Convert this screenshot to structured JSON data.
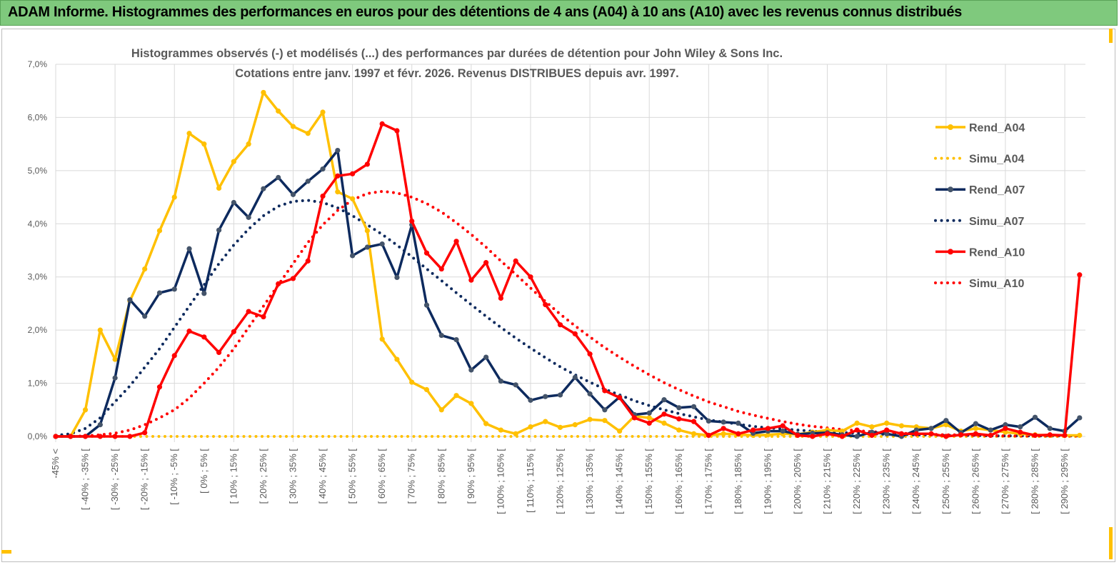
{
  "header": {
    "title": "ADAM Informe. Histogrammes des performances en euros pour des détentions de 4 ans (A04) à 10 ans (A10) avec les revenus connus distribués"
  },
  "chart_data": {
    "type": "line",
    "title": "Histogrammes observés (-) et modélisés (...) des performances par durées de détention pour John Wiley & Sons Inc.",
    "subtitle": "Cotations entre janv. 1997 et févr. 2026. Revenus DISTRIBUES depuis avr. 1997.",
    "ylim": [
      0,
      7
    ],
    "y_ticks": [
      "0,0%",
      "1,0%",
      "2,0%",
      "3,0%",
      "4,0%",
      "5,0%",
      "6,0%",
      "7,0%"
    ],
    "num_categories": 70,
    "x_labels_every": 2,
    "x_labels": [
      "-45% <",
      "[ -40% ; -35% [",
      "[ -30% ; -25% [",
      "[ -20% ; -15% [",
      "[ -10% ; -5% [",
      "[ 0% ; 5% [",
      "[ 10% ; 15% [",
      "[ 20% ; 25% [",
      "[ 30% ; 35% [",
      "[ 40% ; 45% [",
      "[ 50% ; 55% [",
      "[ 60% ; 65% [",
      "[ 70% ; 75% [",
      "[ 80% ; 85% [",
      "[ 90% ; 95% [",
      "[ 100% ; 105% [",
      "[ 110% ; 115% [",
      "[ 120% ; 125% [",
      "[ 130% ; 135% [",
      "[ 140% ; 145% [",
      "[ 150% ; 155% [",
      "[ 160% ; 165% [",
      "[ 170% ; 175% [",
      "[ 180% ; 185% [",
      "[ 190% ; 195% [",
      "[ 200% ; 205% [",
      "[ 210% ; 215% [",
      "[ 220% ; 225% [",
      "[ 230% ; 235% [",
      "[ 240% ; 245% [",
      "[ 250% ; 255% [",
      "[ 260% ; 265% [",
      "[ 270% ; 275% [",
      "[ 280% ; 285% [",
      "[ 290% ; 295% ["
    ],
    "grid": true,
    "legend_position": "right",
    "series": [
      {
        "name": "Rend_A04",
        "color": "#ffc000",
        "style": "solid",
        "markers": true,
        "values": [
          0,
          0,
          0.5,
          2.0,
          1.45,
          2.55,
          3.15,
          3.87,
          4.5,
          5.7,
          5.5,
          4.67,
          5.17,
          5.5,
          6.47,
          6.12,
          5.83,
          5.7,
          6.1,
          4.6,
          4.47,
          3.87,
          1.83,
          1.45,
          1.02,
          0.88,
          0.5,
          0.77,
          0.62,
          0.24,
          0.12,
          0.05,
          0.18,
          0.28,
          0.17,
          0.22,
          0.32,
          0.3,
          0.1,
          0.38,
          0.35,
          0.25,
          0.12,
          0.05,
          0.02,
          0.05,
          0.04,
          0.02,
          0.03,
          0.05,
          0.04,
          0.08,
          0.12,
          0.1,
          0.25,
          0.18,
          0.25,
          0.2,
          0.18,
          0.15,
          0.22,
          0.1,
          0.15,
          0.12,
          0.08,
          0.05,
          0.03,
          0.02,
          0.02,
          0.02
        ]
      },
      {
        "name": "Simu_A04",
        "color": "#ffc000",
        "style": "dotted",
        "markers": false,
        "values": [
          0,
          0,
          0,
          0,
          0,
          0,
          0,
          0,
          0,
          0,
          0,
          0,
          0,
          0,
          0,
          0,
          0,
          0,
          0,
          0,
          0,
          0,
          0,
          0,
          0,
          0,
          0,
          0,
          0,
          0,
          0,
          0,
          0,
          0,
          0,
          0,
          0,
          0,
          0,
          0,
          0,
          0,
          0,
          0,
          0,
          0,
          0,
          0,
          0,
          0,
          0,
          0,
          0,
          0,
          0,
          0,
          0,
          0,
          0,
          0,
          0,
          0,
          0,
          0,
          0,
          0,
          0,
          0,
          0,
          0
        ]
      },
      {
        "name": "Rend_A07",
        "color": "#0d2a5e",
        "style": "solid",
        "markers": true,
        "values": [
          0,
          0,
          0,
          0.22,
          1.1,
          2.57,
          2.26,
          2.7,
          2.77,
          3.53,
          2.69,
          3.88,
          4.4,
          4.12,
          4.66,
          4.87,
          4.55,
          4.8,
          5.03,
          5.38,
          3.4,
          3.56,
          3.62,
          2.99,
          3.98,
          2.47,
          1.9,
          1.82,
          1.25,
          1.49,
          1.04,
          0.97,
          0.68,
          0.75,
          0.78,
          1.11,
          0.8,
          0.5,
          0.74,
          0.41,
          0.44,
          0.69,
          0.54,
          0.56,
          0.29,
          0.27,
          0.25,
          0.06,
          0.1,
          0.1,
          0.04,
          0.06,
          0.07,
          0.03,
          0.0,
          0.08,
          0.05,
          0.0,
          0.12,
          0.15,
          0.3,
          0.07,
          0.24,
          0.12,
          0.22,
          0.18,
          0.36,
          0.15,
          0.1,
          0.35
        ]
      },
      {
        "name": "Simu_A07",
        "color": "#0d2a5e",
        "style": "dotted",
        "markers": false,
        "values": [
          0.02,
          0.05,
          0.15,
          0.35,
          0.65,
          0.95,
          1.3,
          1.65,
          2.05,
          2.45,
          2.85,
          3.25,
          3.6,
          3.9,
          4.15,
          4.33,
          4.42,
          4.44,
          4.4,
          4.3,
          4.15,
          3.98,
          3.8,
          3.6,
          3.38,
          3.15,
          2.93,
          2.7,
          2.48,
          2.26,
          2.05,
          1.85,
          1.66,
          1.48,
          1.31,
          1.16,
          1.02,
          0.89,
          0.78,
          0.67,
          0.58,
          0.5,
          0.43,
          0.37,
          0.31,
          0.27,
          0.23,
          0.19,
          0.16,
          0.14,
          0.12,
          0.1,
          0.08,
          0.07,
          0.06,
          0.05,
          0.04,
          0.04,
          0.03,
          0.03,
          0.02,
          0.02,
          0.02,
          0.01,
          0.01,
          0.01,
          0.01,
          0.01,
          0.01,
          0.01
        ]
      },
      {
        "name": "Rend_A10",
        "color": "#ff0000",
        "style": "solid",
        "markers": true,
        "values": [
          0,
          0,
          0,
          0,
          0,
          0,
          0.07,
          0.93,
          1.52,
          1.98,
          1.87,
          1.58,
          1.97,
          2.35,
          2.25,
          2.87,
          2.97,
          3.3,
          4.52,
          4.9,
          4.94,
          5.12,
          5.88,
          5.75,
          4.05,
          3.45,
          3.15,
          3.67,
          2.94,
          3.27,
          2.6,
          3.3,
          3.0,
          2.48,
          2.1,
          1.93,
          1.55,
          0.86,
          0.73,
          0.35,
          0.25,
          0.42,
          0.33,
          0.28,
          0.02,
          0.15,
          0.05,
          0.12,
          0.15,
          0.2,
          0.02,
          0.0,
          0.05,
          0.0,
          0.12,
          0.02,
          0.12,
          0.05,
          0.05,
          0.05,
          0.0,
          0.03,
          0.05,
          0.02,
          0.15,
          0.08,
          0.02,
          0.03,
          0.02,
          3.04
        ]
      },
      {
        "name": "Simu_A10",
        "color": "#ff0000",
        "style": "dotted",
        "markers": false,
        "values": [
          0,
          0,
          0.01,
          0.03,
          0.06,
          0.12,
          0.22,
          0.35,
          0.5,
          0.72,
          1.0,
          1.3,
          1.65,
          2.05,
          2.45,
          2.85,
          3.25,
          3.65,
          3.98,
          4.25,
          4.45,
          4.57,
          4.61,
          4.58,
          4.5,
          4.38,
          4.22,
          4.02,
          3.8,
          3.56,
          3.3,
          3.05,
          2.79,
          2.54,
          2.3,
          2.08,
          1.87,
          1.67,
          1.49,
          1.32,
          1.16,
          1.01,
          0.88,
          0.76,
          0.65,
          0.56,
          0.47,
          0.4,
          0.34,
          0.28,
          0.23,
          0.19,
          0.16,
          0.13,
          0.11,
          0.09,
          0.07,
          0.06,
          0.05,
          0.04,
          0.03,
          0.03,
          0.02,
          0.02,
          0.01,
          0.01,
          0.01,
          0.01,
          0.01,
          0.01
        ]
      }
    ]
  }
}
